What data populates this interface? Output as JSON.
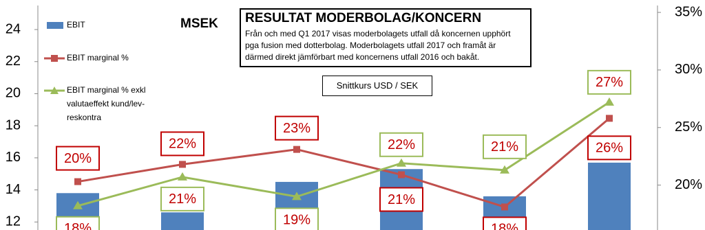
{
  "chart_data": {
    "type": "bar_line",
    "title": "RESULTAT MODERBOLAG/KONCERN",
    "annotations": [
      "MSEK",
      "Från och med Q1 2017 visas moderbolagets utfall då koncernen upphört pga fusion med dotterbolag. Moderbolagets utfall 2017 och framåt är därmed direkt jämförbart med koncernens utfall 2016 och bakåt.",
      "Snittkurs USD / SEK"
    ],
    "categories": [
      null,
      null,
      null,
      null,
      null,
      null
    ],
    "ylim": [
      11.5,
      25.5
    ],
    "yticks": [
      12,
      14,
      16,
      18,
      20,
      22,
      24
    ],
    "y2lim": [
      16.1,
      35.6
    ],
    "y2ticks": [
      {
        "value": 20,
        "label": "20%"
      },
      {
        "value": 25,
        "label": "25%"
      },
      {
        "value": 30,
        "label": "30%"
      },
      {
        "value": 35,
        "label": "35%"
      }
    ],
    "series": [
      {
        "name": "EBIT",
        "type": "bar",
        "color": "#4f81bd",
        "values": [
          13.8,
          12.6,
          14.5,
          15.3,
          13.6,
          15.7
        ]
      },
      {
        "name": "EBIT marginal %",
        "type": "line",
        "axis": "y2",
        "color": "#c0504d",
        "marker": "square",
        "values": [
          20.3,
          21.8,
          23.1,
          20.9,
          18.1,
          25.8
        ],
        "value_labels": [
          "20%",
          "22%",
          "23%",
          "21%",
          "18%",
          "26%"
        ]
      },
      {
        "name": "EBIT marginal % exkl valutaeffekt kund/lev-reskontra",
        "type": "line",
        "axis": "y2",
        "color": "#9bbb59",
        "marker": "triangle",
        "values": [
          18.2,
          20.7,
          19.0,
          21.9,
          21.3,
          27.2
        ],
        "value_labels": [
          "18%",
          "21%",
          "19%",
          "22%",
          "21%",
          "27%"
        ]
      }
    ]
  }
}
